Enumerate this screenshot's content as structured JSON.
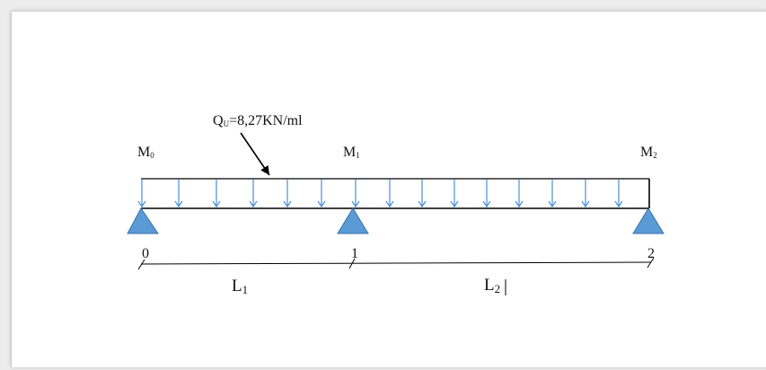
{
  "load": {
    "label": "Q",
    "label_sub": "U",
    "label_rest": "=8,27KN/ml"
  },
  "moments": [
    {
      "base": "M",
      "sub": "0"
    },
    {
      "base": "M",
      "sub": "1"
    },
    {
      "base": "M",
      "sub": "2"
    }
  ],
  "supports": [
    {
      "label": "0"
    },
    {
      "label": "1"
    },
    {
      "label": "2"
    }
  ],
  "spans": [
    {
      "base": "L",
      "sub": "1"
    },
    {
      "base": "L",
      "sub": "2"
    }
  ],
  "colors": {
    "beam": "#000000",
    "load_arrows": "#4a8fd6",
    "support_fill": "#5b9bd5",
    "support_stroke": "#3a72ad",
    "text": "#111111"
  }
}
